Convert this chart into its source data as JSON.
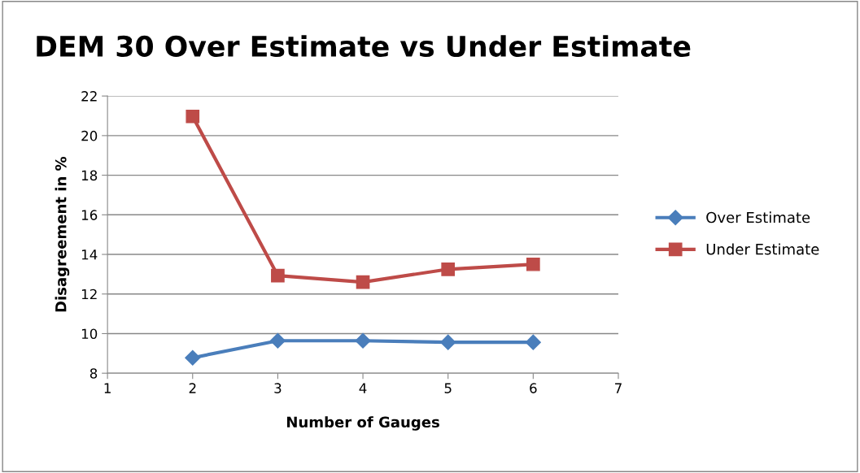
{
  "chart_data": {
    "type": "line",
    "title": "DEM 30 Over Estimate vs Under Estimate",
    "xlabel": "Number of Gauges",
    "ylabel": "Disagreement in %",
    "x": [
      2,
      3,
      4,
      5,
      6
    ],
    "series": [
      {
        "name": "Over Estimate",
        "color": "#4a7ebb",
        "marker": "diamond",
        "values": [
          8.78,
          9.64,
          9.64,
          9.56,
          9.56
        ]
      },
      {
        "name": "Under Estimate",
        "color": "#be4b48",
        "marker": "square",
        "values": [
          20.97,
          12.93,
          12.6,
          13.25,
          13.5
        ]
      }
    ],
    "xlim": [
      1,
      7
    ],
    "xticks": [
      1,
      2,
      3,
      4,
      5,
      6,
      7
    ],
    "ylim": [
      8,
      22
    ],
    "yticks": [
      8,
      10,
      12,
      14,
      16,
      18,
      20,
      22
    ],
    "grid": "y",
    "legend": "right",
    "line_style": "solid"
  }
}
